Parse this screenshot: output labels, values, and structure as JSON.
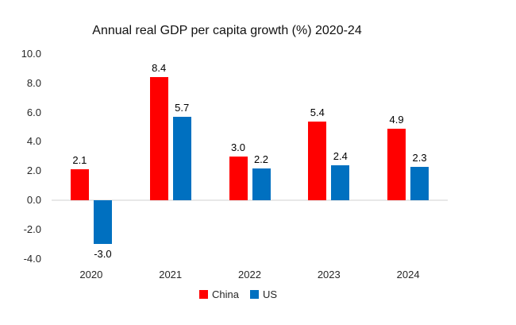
{
  "chart_data": {
    "type": "bar",
    "title": "Annual real GDP per capita growth (%) 2020-24",
    "categories": [
      "2020",
      "2021",
      "2022",
      "2023",
      "2024"
    ],
    "series": [
      {
        "name": "China",
        "color": "#ff0000",
        "values": [
          2.1,
          8.4,
          3.0,
          5.4,
          4.9
        ]
      },
      {
        "name": "US",
        "color": "#0070c0",
        "values": [
          -3.0,
          5.7,
          2.2,
          2.4,
          2.3
        ]
      }
    ],
    "y_ticks": [
      10.0,
      8.0,
      6.0,
      4.0,
      2.0,
      0.0,
      -2.0,
      -4.0
    ],
    "ylim": [
      -4.0,
      10.0
    ],
    "value_label_decimals": 1,
    "grid": false,
    "legend_position": "bottom",
    "xlabel": "",
    "ylabel": ""
  },
  "colors": {
    "china_bar": "#ff0000",
    "us_bar": "#0070c0",
    "axis_line": "#e8e8e8",
    "tick_text": "#262626",
    "data_label_text": "#000000",
    "title_text": "#111111",
    "background": "#ffffff"
  }
}
